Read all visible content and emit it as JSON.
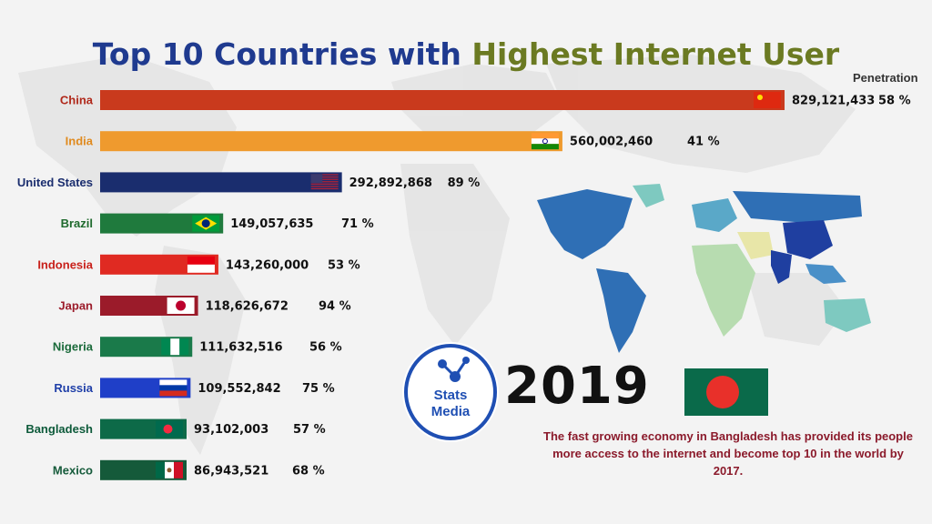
{
  "title": {
    "part1": "Top 10 Countries with",
    "part2": "Highest Internet User"
  },
  "penetration_header": "Penetration",
  "year": "2019",
  "logo": {
    "line1": "Stats",
    "line2": "Media"
  },
  "caption": "The fast growing economy in Bangladesh has provided its people more access to the internet and become top 10 in the world by 2017.",
  "colors": {
    "title_blue": "#1f3a8f",
    "title_olive": "#6b7a22",
    "caption": "#8b1a2b",
    "bangladesh_green": "#0a6a4a",
    "bangladesh_red": "#e8302a"
  },
  "chart_data": {
    "type": "bar",
    "orientation": "horizontal",
    "categories": [
      "China",
      "India",
      "United States",
      "Brazil",
      "Indonesia",
      "Japan",
      "Nigeria",
      "Russia",
      "Bangladesh",
      "Mexico"
    ],
    "values": [
      829121433,
      560002460,
      292892868,
      149057635,
      143260000,
      118626672,
      111632516,
      109552842,
      93102003,
      86943521
    ],
    "value_labels": [
      "829,121,433",
      "560,002,460",
      "292,892,868",
      "149,057,635",
      "143,260,000",
      "118,626,672",
      "111,632,516",
      "109,552,842",
      "93,102,003",
      "86,943,521"
    ],
    "penetration": [
      "58 %",
      "41 %",
      "89 %",
      "71 %",
      "53 %",
      "94 %",
      "56 %",
      "75 %",
      "57 %",
      "68 %"
    ],
    "bar_colors": [
      "#c93a1d",
      "#ef9a2e",
      "#1a2d6e",
      "#1f7a3d",
      "#e02a22",
      "#9b1b2a",
      "#1a7a4a",
      "#1f3fc8",
      "#0d6a48",
      "#155a3a"
    ],
    "label_colors": [
      "#b0281a",
      "#e08a1e",
      "#1a2d6e",
      "#1f6a2d",
      "#c8201a",
      "#9b1b2a",
      "#1a6a3a",
      "#1f3fa8",
      "#0d5a3a",
      "#155a3a"
    ],
    "flags": [
      "china-flag",
      "india-flag",
      "usa-flag",
      "brazil-flag",
      "indonesia-flag",
      "japan-flag",
      "nigeria-flag",
      "russia-flag",
      "bangladesh-flag",
      "mexico-flag"
    ],
    "xlim": [
      0,
      829121433
    ]
  }
}
